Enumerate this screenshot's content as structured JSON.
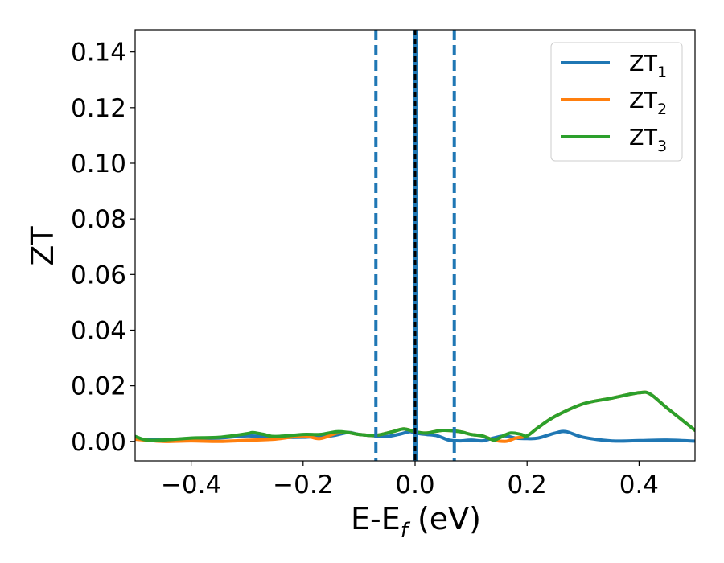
{
  "chart_data": {
    "type": "line",
    "xlabel": "E-E",
    "xlabel_sub": "f",
    "xlabel_unit": " (eV)",
    "ylabel": "ZT",
    "xlim": [
      -0.5,
      0.5
    ],
    "ylim": [
      -0.007,
      0.148
    ],
    "xticks": [
      -0.4,
      -0.2,
      0.0,
      0.2,
      0.4
    ],
    "xtick_labels": [
      "−0.4",
      "−0.2",
      "0.0",
      "0.2",
      "0.4"
    ],
    "yticks": [
      0.0,
      0.02,
      0.04,
      0.06,
      0.08,
      0.1,
      0.12,
      0.14
    ],
    "ytick_labels": [
      "0.00",
      "0.02",
      "0.04",
      "0.06",
      "0.08",
      "0.10",
      "0.12",
      "0.14"
    ],
    "grid": false,
    "legend_position": "top-right",
    "series": [
      {
        "name": "ZT",
        "name_sub": "1",
        "color": "#1f77b4",
        "x": [
          -0.5,
          -0.45,
          -0.4,
          -0.35,
          -0.3,
          -0.25,
          -0.2,
          -0.15,
          -0.12,
          -0.1,
          -0.07,
          -0.05,
          -0.03,
          -0.01,
          0.0,
          0.02,
          0.04,
          0.06,
          0.08,
          0.1,
          0.12,
          0.14,
          0.16,
          0.18,
          0.2,
          0.22,
          0.25,
          0.27,
          0.3,
          0.35,
          0.4,
          0.45,
          0.5
        ],
        "y": [
          0.001,
          0.0005,
          0.001,
          0.0012,
          0.002,
          0.0015,
          0.0015,
          0.002,
          0.0032,
          0.0025,
          0.002,
          0.0018,
          0.0025,
          0.0035,
          0.003,
          0.0025,
          0.002,
          0.0005,
          0.0002,
          0.0005,
          0.0002,
          0.0012,
          0.002,
          0.0012,
          0.001,
          0.0012,
          0.003,
          0.0035,
          0.0015,
          0.0002,
          0.0003,
          0.0005,
          0.0001
        ]
      },
      {
        "name": "ZT",
        "name_sub": "2",
        "color": "#ff7f0e",
        "x": [
          -0.5,
          -0.45,
          -0.4,
          -0.35,
          -0.3,
          -0.25,
          -0.2,
          -0.17,
          -0.14,
          -0.12,
          -0.1,
          -0.07,
          -0.04,
          -0.02,
          0.0,
          0.02,
          0.05,
          0.08,
          0.1,
          0.12,
          0.14,
          0.16,
          0.17,
          0.18,
          0.2,
          0.22,
          0.25,
          0.3,
          0.35,
          0.4,
          0.42,
          0.45,
          0.5
        ],
        "y": [
          0.0008,
          0.0,
          0.0002,
          0.0,
          0.0004,
          0.0008,
          0.002,
          0.001,
          0.003,
          0.0032,
          0.0025,
          0.0022,
          0.0035,
          0.0045,
          0.0035,
          0.003,
          0.004,
          0.0035,
          0.0025,
          0.002,
          0.0005,
          0.0,
          0.0005,
          0.0012,
          0.002,
          0.005,
          0.009,
          0.0135,
          0.0155,
          0.0175,
          0.017,
          0.012,
          0.004
        ]
      },
      {
        "name": "ZT",
        "name_sub": "3",
        "color": "#2ca02c",
        "x": [
          -0.5,
          -0.48,
          -0.45,
          -0.4,
          -0.35,
          -0.3,
          -0.29,
          -0.27,
          -0.25,
          -0.2,
          -0.17,
          -0.14,
          -0.12,
          -0.1,
          -0.07,
          -0.04,
          -0.02,
          0.0,
          0.02,
          0.05,
          0.08,
          0.1,
          0.12,
          0.14,
          0.15,
          0.17,
          0.19,
          0.2,
          0.22,
          0.25,
          0.3,
          0.35,
          0.4,
          0.42,
          0.45,
          0.5
        ],
        "y": [
          0.0018,
          0.0005,
          0.0005,
          0.0012,
          0.0015,
          0.0028,
          0.0032,
          0.0025,
          0.0018,
          0.0025,
          0.0025,
          0.0035,
          0.0032,
          0.0025,
          0.0022,
          0.0035,
          0.0045,
          0.0035,
          0.003,
          0.004,
          0.0035,
          0.0025,
          0.002,
          0.0005,
          0.0012,
          0.003,
          0.0025,
          0.002,
          0.005,
          0.009,
          0.0135,
          0.0155,
          0.0175,
          0.017,
          0.012,
          0.004
        ]
      }
    ],
    "vlines": [
      {
        "x": -0.07,
        "color": "#1f77b4",
        "style": "dashed"
      },
      {
        "x": 0.07,
        "color": "#1f77b4",
        "style": "dashed"
      },
      {
        "x": 0.0,
        "color": "#1f77b4",
        "style": "solid-thick"
      },
      {
        "x": 0.0,
        "color": "#000000",
        "style": "dashed"
      }
    ]
  }
}
